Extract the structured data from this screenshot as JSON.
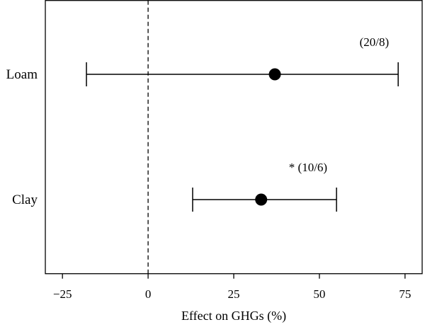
{
  "chart_data": {
    "type": "forest",
    "xlabel": "Effect on GHGs (%)",
    "ylabel": "",
    "xlim": [
      -30,
      80
    ],
    "xticks": [
      {
        "value": -25,
        "label": "−25"
      },
      {
        "value": 0,
        "label": "0"
      },
      {
        "value": 25,
        "label": "25"
      },
      {
        "value": 50,
        "label": "50"
      },
      {
        "value": 75,
        "label": "75"
      }
    ],
    "reference_line": {
      "x": 0,
      "style": "dashed"
    },
    "grid": false,
    "rows": [
      {
        "category": "Loam",
        "estimate": 37,
        "lower": -18,
        "upper": 73,
        "annotation": "(20/8)"
      },
      {
        "category": "Clay",
        "estimate": 33,
        "lower": 13,
        "upper": 55,
        "annotation": "* (10/6)"
      }
    ]
  }
}
